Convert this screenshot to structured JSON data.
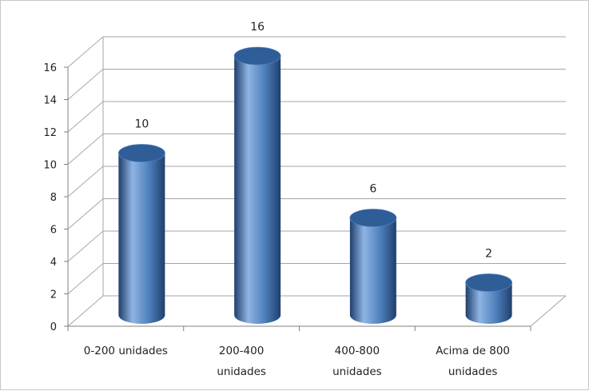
{
  "chart_data": {
    "type": "bar",
    "style": "3d-cylinder",
    "categories": [
      [
        "0-200 unidades"
      ],
      [
        "200-400",
        "unidades"
      ],
      [
        "400-800",
        "unidades"
      ],
      [
        "Acima de 800",
        "unidades"
      ]
    ],
    "values": [
      10,
      16,
      6,
      2
    ],
    "data_labels": [
      "10",
      "16",
      "6",
      "2"
    ],
    "y_ticks": [
      "0",
      "2",
      "4",
      "6",
      "8",
      "10",
      "12",
      "14",
      "16"
    ],
    "ylim": [
      0,
      16
    ],
    "grid": true,
    "legend": "none",
    "title": "",
    "xlabel": "",
    "ylabel": "",
    "colors": {
      "bar_light": "#8fb4e3",
      "bar_mid": "#4f81bd",
      "bar_dark": "#1f3f6e",
      "bar_top": "#2e5d98",
      "grid": "#a6a6a6",
      "axis": "#808080"
    }
  }
}
